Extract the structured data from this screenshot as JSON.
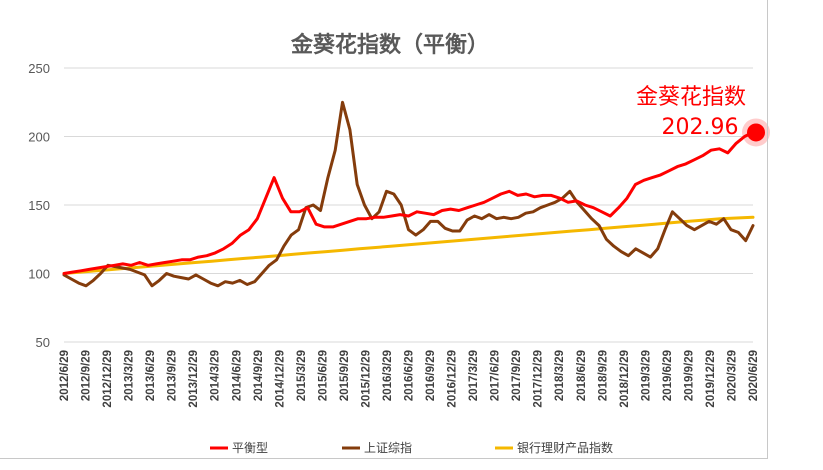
{
  "chart_data": {
    "type": "line",
    "title": "金葵花指数（平衡）",
    "xlabel": "",
    "ylabel": "",
    "ylim": [
      50,
      250
    ],
    "yticks": [
      50,
      100,
      150,
      200,
      250
    ],
    "x_tick_labels": [
      "2012/6/29",
      "2012/9/29",
      "2012/12/29",
      "2013/3/29",
      "2013/6/29",
      "2013/9/29",
      "2013/12/29",
      "2014/3/29",
      "2014/6/29",
      "2014/9/29",
      "2014/12/29",
      "2015/3/29",
      "2015/6/29",
      "2015/9/29",
      "2015/12/29",
      "2016/3/29",
      "2016/6/29",
      "2016/9/29",
      "2016/12/29",
      "2017/3/29",
      "2017/6/29",
      "2017/9/29",
      "2017/12/29",
      "2018/3/29",
      "2018/6/29",
      "2018/9/29",
      "2018/12/29",
      "2019/3/29",
      "2019/6/29",
      "2019/9/29",
      "2019/12/29",
      "2020/3/29",
      "2020/6/29"
    ],
    "grid": "horizontal",
    "legend_position": "bottom",
    "series": [
      {
        "name": "平衡型",
        "color": "#ff0000",
        "values": [
          100,
          101,
          102,
          103,
          104,
          105,
          106,
          107,
          106,
          108,
          106,
          107,
          108,
          109,
          110,
          110,
          112,
          113,
          115,
          118,
          122,
          128,
          132,
          140,
          155,
          170,
          155,
          145,
          145,
          148,
          136,
          134,
          134,
          136,
          138,
          140,
          140,
          141,
          141,
          142,
          143,
          142,
          145,
          144,
          143,
          146,
          147,
          146,
          148,
          150,
          152,
          155,
          158,
          160,
          157,
          158,
          156,
          157,
          157,
          155,
          152,
          153,
          150,
          148,
          145,
          142,
          148,
          155,
          165,
          168,
          170,
          172,
          175,
          178,
          180,
          183,
          186,
          190,
          191,
          188,
          195,
          200,
          203
        ]
      },
      {
        "name": "上证综指",
        "color": "#843c0c",
        "values": [
          99,
          96,
          93,
          91,
          95,
          100,
          106,
          105,
          104,
          103,
          101,
          99,
          91,
          95,
          100,
          98,
          97,
          96,
          99,
          96,
          93,
          91,
          94,
          93,
          95,
          92,
          94,
          100,
          106,
          110,
          120,
          128,
          132,
          148,
          150,
          146,
          170,
          190,
          225,
          205,
          165,
          150,
          140,
          145,
          160,
          158,
          150,
          132,
          128,
          132,
          138,
          138,
          133,
          131,
          131,
          139,
          142,
          140,
          143,
          140,
          141,
          140,
          141,
          144,
          145,
          148,
          150,
          152,
          155,
          160,
          152,
          146,
          140,
          135,
          125,
          120,
          116,
          113,
          118,
          115,
          112,
          118,
          132,
          145,
          140,
          135,
          132,
          135,
          138,
          136,
          140,
          132,
          130,
          124,
          135
        ]
      },
      {
        "name": "银行理财产品指数",
        "color": "#f5b800",
        "values": [
          100,
          101,
          102,
          103,
          104,
          105,
          106,
          107,
          108,
          109,
          110,
          111,
          112,
          113,
          114,
          115,
          116,
          117,
          118,
          119,
          120,
          121,
          122,
          123,
          124,
          125,
          126,
          127,
          128,
          129,
          130,
          131,
          132,
          133,
          134,
          135,
          136,
          137,
          138,
          139,
          140,
          140.5,
          141
        ]
      }
    ],
    "annotation": {
      "name_label": "金葵花指数",
      "value_label": "202.96",
      "value": 202.96,
      "color": "#ff0000"
    }
  }
}
